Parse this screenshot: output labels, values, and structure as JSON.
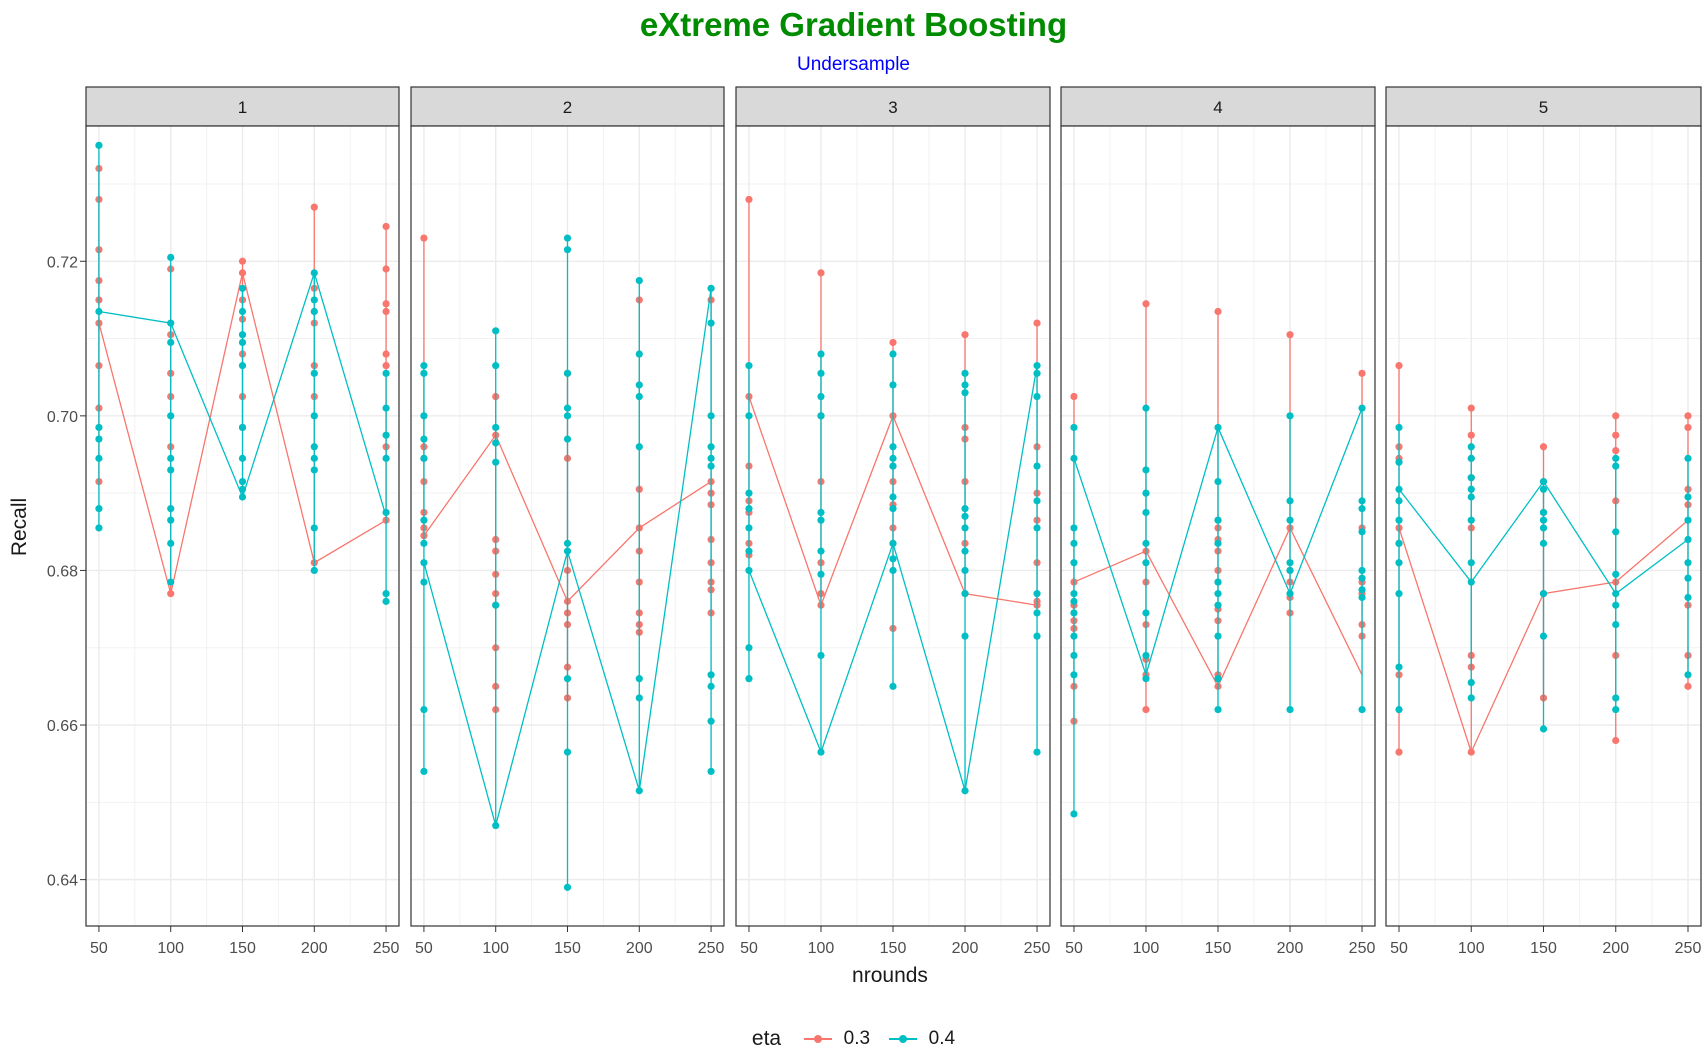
{
  "chart_data": {
    "type": "line",
    "title": "eXtreme Gradient Boosting",
    "subtitle": "Undersample",
    "xlabel": "nrounds",
    "ylabel": "Recall",
    "x_ticks": [
      50,
      100,
      150,
      200,
      250
    ],
    "y_ticks": [
      "0.64",
      "0.66",
      "0.68",
      "0.70",
      "0.72"
    ],
    "ylim": [
      0.634,
      0.7375
    ],
    "xlim": [
      41,
      259
    ],
    "grid": true,
    "legend": {
      "title": "eta",
      "position": "bottom"
    },
    "colors": {
      "0.3": "#f8766d",
      "0.4": "#00bfc4"
    },
    "facets": [
      {
        "label": "1",
        "series": [
          {
            "name": "0.3",
            "points": {
              "50": [
                0.732,
                0.728,
                0.7215,
                0.7175,
                0.715,
                0.712,
                0.7065,
                0.701,
                0.6915
              ],
              "100": [
                0.719,
                0.7105,
                0.7055,
                0.7025,
                0.696,
                0.677
              ],
              "150": [
                0.72,
                0.7185,
                0.715,
                0.7125,
                0.708,
                0.7025,
                0.6985
              ],
              "200": [
                0.727,
                0.7165,
                0.7135,
                0.712,
                0.7065,
                0.7025,
                0.681
              ],
              "250": [
                0.7245,
                0.719,
                0.7145,
                0.7135,
                0.708,
                0.7065,
                0.696,
                0.6865
              ]
            },
            "path": [
              [
                50,
                0.712
              ],
              [
                100,
                0.677
              ],
              [
                150,
                0.7185
              ],
              [
                200,
                0.681
              ],
              [
                250,
                0.6865
              ]
            ]
          },
          {
            "name": "0.4",
            "points": {
              "50": [
                0.735,
                0.7135,
                0.6985,
                0.697,
                0.6945,
                0.688,
                0.6855
              ],
              "100": [
                0.7205,
                0.712,
                0.7095,
                0.7,
                0.6945,
                0.693,
                0.688,
                0.6865,
                0.6835,
                0.6785
              ],
              "150": [
                0.7165,
                0.7135,
                0.7105,
                0.7095,
                0.7065,
                0.6985,
                0.6945,
                0.6915,
                0.6905,
                0.6895
              ],
              "200": [
                0.7185,
                0.715,
                0.7135,
                0.7055,
                0.7,
                0.696,
                0.6945,
                0.693,
                0.6855,
                0.68
              ],
              "250": [
                0.7055,
                0.701,
                0.6975,
                0.6945,
                0.6875,
                0.677,
                0.676
              ]
            },
            "path": [
              [
                50,
                0.7135
              ],
              [
                100,
                0.712
              ],
              [
                150,
                0.6895
              ],
              [
                200,
                0.7185
              ],
              [
                250,
                0.687
              ]
            ]
          }
        ]
      },
      {
        "label": "2",
        "series": [
          {
            "name": "0.3",
            "points": {
              "50": [
                0.723,
                0.696,
                0.6945,
                0.6915,
                0.6875,
                0.6855,
                0.6845
              ],
              "100": [
                0.7025,
                0.6975,
                0.684,
                0.6825,
                0.6795,
                0.677,
                0.6755,
                0.67,
                0.665,
                0.662
              ],
              "150": [
                0.7055,
                0.6945,
                0.68,
                0.676,
                0.6745,
                0.673,
                0.6675,
                0.6635
              ],
              "200": [
                0.715,
                0.6905,
                0.6855,
                0.6825,
                0.6785,
                0.6745,
                0.673,
                0.672
              ],
              "250": [
                0.715,
                0.6915,
                0.69,
                0.6885,
                0.684,
                0.681,
                0.6785,
                0.6775,
                0.6745
              ]
            },
            "path": [
              [
                50,
                0.6845
              ],
              [
                100,
                0.6975
              ],
              [
                150,
                0.676
              ],
              [
                200,
                0.6855
              ],
              [
                250,
                0.6915
              ]
            ]
          },
          {
            "name": "0.4",
            "points": {
              "50": [
                0.7065,
                0.7055,
                0.7,
                0.697,
                0.6945,
                0.6865,
                0.6835,
                0.681,
                0.6785,
                0.662,
                0.654
              ],
              "100": [
                0.711,
                0.7065,
                0.6985,
                0.6965,
                0.694,
                0.6755,
                0.647
              ],
              "150": [
                0.723,
                0.7215,
                0.7055,
                0.701,
                0.7,
                0.697,
                0.6835,
                0.6825,
                0.666,
                0.6565,
                0.639
              ],
              "200": [
                0.7175,
                0.708,
                0.704,
                0.7025,
                0.696,
                0.6635,
                0.666,
                0.6515
              ],
              "250": [
                0.7165,
                0.712,
                0.7,
                0.696,
                0.6945,
                0.6935,
                0.6665,
                0.665,
                0.6605,
                0.654
              ]
            },
            "path": [
              [
                50,
                0.681
              ],
              [
                100,
                0.647
              ],
              [
                150,
                0.6825
              ],
              [
                200,
                0.6515
              ],
              [
                250,
                0.7165
              ]
            ]
          }
        ]
      },
      {
        "label": "3",
        "series": [
          {
            "name": "0.3",
            "points": {
              "50": [
                0.728,
                0.7025,
                0.6935,
                0.689,
                0.6875,
                0.6835,
                0.682
              ],
              "100": [
                0.7185,
                0.7,
                0.6915,
                0.681,
                0.677,
                0.6755
              ],
              "150": [
                0.7095,
                0.7,
                0.6935,
                0.6915,
                0.6885,
                0.6855,
                0.6835,
                0.6725
              ],
              "200": [
                0.7105,
                0.6985,
                0.697,
                0.6915,
                0.6835,
                0.677
              ],
              "250": [
                0.712,
                0.696,
                0.69,
                0.6865,
                0.681,
                0.676,
                0.6755
              ]
            },
            "path": [
              [
                50,
                0.7025
              ],
              [
                100,
                0.6755
              ],
              [
                150,
                0.7
              ],
              [
                200,
                0.677
              ],
              [
                250,
                0.6755
              ]
            ]
          },
          {
            "name": "0.4",
            "points": {
              "50": [
                0.7065,
                0.7,
                0.69,
                0.688,
                0.6855,
                0.6825,
                0.68,
                0.67,
                0.666
              ],
              "100": [
                0.708,
                0.7055,
                0.7025,
                0.7,
                0.6875,
                0.6865,
                0.6825,
                0.6795,
                0.669,
                0.6565
              ],
              "150": [
                0.708,
                0.704,
                0.696,
                0.6945,
                0.6935,
                0.6895,
                0.688,
                0.6835,
                0.6815,
                0.68,
                0.665
              ],
              "200": [
                0.7055,
                0.704,
                0.703,
                0.688,
                0.687,
                0.6855,
                0.6825,
                0.68,
                0.677,
                0.6715,
                0.6515
              ],
              "250": [
                0.7065,
                0.7055,
                0.7025,
                0.6935,
                0.689,
                0.6855,
                0.677,
                0.6745,
                0.6715,
                0.6565
              ]
            },
            "path": [
              [
                50,
                0.68
              ],
              [
                100,
                0.6565
              ],
              [
                150,
                0.6835
              ],
              [
                200,
                0.6515
              ],
              [
                250,
                0.7065
              ]
            ]
          }
        ]
      },
      {
        "label": "4",
        "series": [
          {
            "name": "0.3",
            "points": {
              "50": [
                0.7025,
                0.6785,
                0.6755,
                0.6735,
                0.6725,
                0.665,
                0.6605
              ],
              "100": [
                0.7145,
                0.6825,
                0.6785,
                0.673,
                0.6685,
                0.6665,
                0.662
              ],
              "150": [
                0.7135,
                0.6865,
                0.6855,
                0.684,
                0.6825,
                0.68,
                0.6785,
                0.675,
                0.6735,
                0.6665,
                0.665
              ],
              "200": [
                0.7105,
                0.6855,
                0.68,
                0.6785,
                0.6765,
                0.6745
              ],
              "250": [
                0.7055,
                0.6855,
                0.6785,
                0.677,
                0.673,
                0.6715
              ]
            },
            "path": [
              [
                50,
                0.6785
              ],
              [
                100,
                0.6825
              ],
              [
                150,
                0.665
              ],
              [
                200,
                0.6855
              ],
              [
                250,
                0.6665
              ]
            ]
          },
          {
            "name": "0.4",
            "points": {
              "50": [
                0.6985,
                0.6945,
                0.6855,
                0.6835,
                0.681,
                0.677,
                0.676,
                0.6745,
                0.6715,
                0.669,
                0.6665,
                0.6485
              ],
              "100": [
                0.701,
                0.693,
                0.69,
                0.6875,
                0.6835,
                0.681,
                0.6745,
                0.669,
                0.666
              ],
              "150": [
                0.6985,
                0.6915,
                0.6865,
                0.6835,
                0.6785,
                0.677,
                0.6755,
                0.6715,
                0.666,
                0.662
              ],
              "200": [
                0.7,
                0.689,
                0.6865,
                0.681,
                0.68,
                0.677,
                0.662
              ],
              "250": [
                0.701,
                0.689,
                0.688,
                0.685,
                0.68,
                0.679,
                0.6775,
                0.6765,
                0.662
              ]
            },
            "path": [
              [
                50,
                0.6945
              ],
              [
                100,
                0.6665
              ],
              [
                150,
                0.6985
              ],
              [
                200,
                0.677
              ],
              [
                250,
                0.701
              ]
            ]
          }
        ]
      },
      {
        "label": "5",
        "series": [
          {
            "name": "0.3",
            "points": {
              "50": [
                0.7065,
                0.696,
                0.6945,
                0.6855,
                0.6835,
                0.6665,
                0.6565
              ],
              "100": [
                0.701,
                0.6975,
                0.6945,
                0.692,
                0.6855,
                0.669,
                0.6675,
                0.6565
              ],
              "150": [
                0.696,
                0.6915,
                0.6875,
                0.677,
                0.6635
              ],
              "200": [
                0.7,
                0.6975,
                0.6955,
                0.689,
                0.6785,
                0.669,
                0.658
              ],
              "250": [
                0.7,
                0.6985,
                0.6905,
                0.6885,
                0.6755,
                0.669,
                0.665
              ]
            },
            "path": [
              [
                50,
                0.6855
              ],
              [
                100,
                0.6565
              ],
              [
                150,
                0.677
              ],
              [
                200,
                0.6785
              ],
              [
                250,
                0.6865
              ]
            ]
          },
          {
            "name": "0.4",
            "points": {
              "50": [
                0.6985,
                0.694,
                0.6905,
                0.689,
                0.6865,
                0.6835,
                0.681,
                0.677,
                0.6675,
                0.662
              ],
              "100": [
                0.696,
                0.6945,
                0.692,
                0.6905,
                0.6895,
                0.6865,
                0.681,
                0.6785,
                0.6655,
                0.6635
              ],
              "150": [
                0.6915,
                0.6905,
                0.6875,
                0.6865,
                0.6855,
                0.6835,
                0.677,
                0.6715,
                0.6595
              ],
              "200": [
                0.6945,
                0.6935,
                0.685,
                0.6795,
                0.677,
                0.6755,
                0.673,
                0.6635,
                0.662
              ],
              "250": [
                0.6945,
                0.6895,
                0.6865,
                0.684,
                0.681,
                0.679,
                0.6765,
                0.6665
              ]
            },
            "path": [
              [
                50,
                0.6905
              ],
              [
                100,
                0.6785
              ],
              [
                150,
                0.6915
              ],
              [
                200,
                0.677
              ],
              [
                250,
                0.684
              ]
            ]
          }
        ]
      }
    ]
  }
}
